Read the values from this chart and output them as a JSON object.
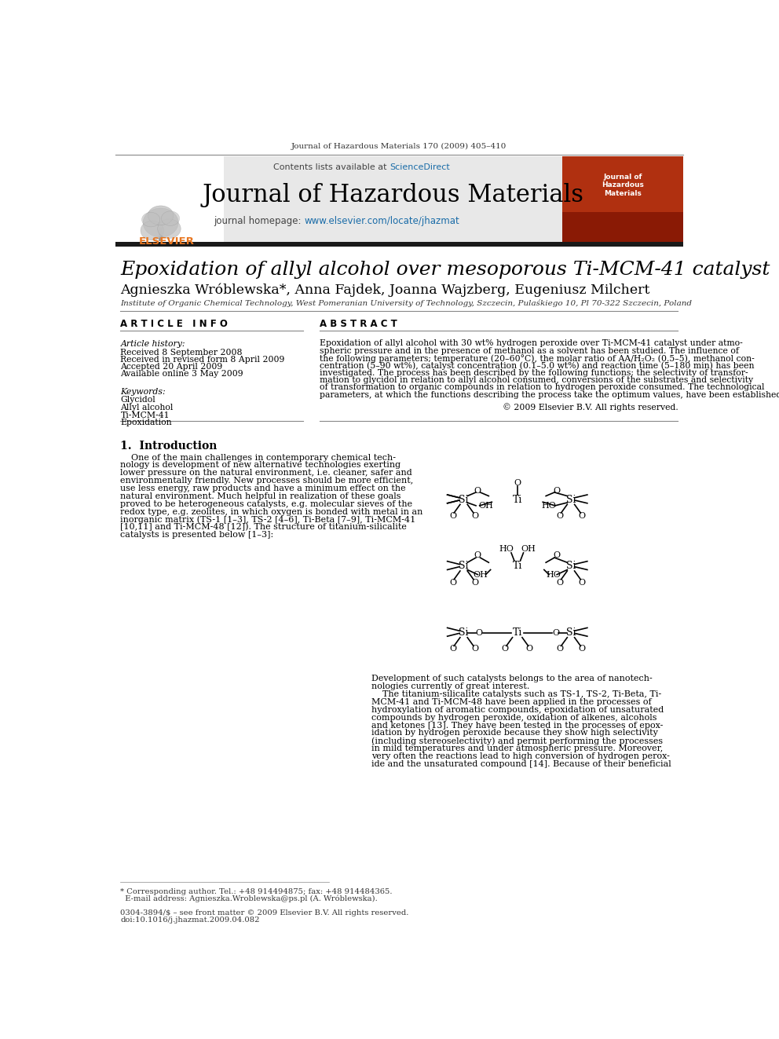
{
  "page_title": "Journal of Hazardous Materials 170 (2009) 405–410",
  "journal_name": "Journal of Hazardous Materials",
  "contents_text": "Contents lists available at ScienceDirect",
  "homepage_text": "journal homepage: www.elsevier.com/locate/jhazmat",
  "article_title": "Epoxidation of allyl alcohol over mesoporous Ti-MCM-41 catalyst",
  "authors": "Agnieszka Wróblewska*, Anna Fajdek, Joanna Wajzberg, Eugeniusz Milchert",
  "affiliation": "Institute of Organic Chemical Technology, West Pomeranian University of Technology, Szczecin, Pulaśkiego 10, Pl 70-322 Szczecin, Poland",
  "article_info_header": "A R T I C L E   I N F O",
  "abstract_header": "A B S T R A C T",
  "article_history_label": "Article history:",
  "received": "Received 8 September 2008",
  "received_revised": "Received in revised form 8 April 2009",
  "accepted": "Accepted 20 April 2009",
  "available": "Available online 3 May 2009",
  "keywords_label": "Keywords:",
  "keywords": [
    "Glycidol",
    "Allyl alcohol",
    "Ti-MCM-41",
    "Epoxidation"
  ],
  "copyright": "© 2009 Elsevier B.V. All rights reserved.",
  "intro_header": "1.  Introduction",
  "footer_text1": "* Corresponding author. Tel.: +48 914494875; fax: +48 914484365.",
  "footer_text2": "  E-mail address: Agnieszka.Wroblewska@ps.pl (A. Wróblewska).",
  "footer_bottom1": "0304-3894/$ – see front matter © 2009 Elsevier B.V. All rights reserved.",
  "footer_bottom2": "doi:10.1016/j.jhazmat.2009.04.082",
  "header_bg": "#e8e8e8",
  "header_bar_color": "#1a1a1a",
  "sciencedirect_color": "#1a6ca8",
  "link_color": "#1a6ca8",
  "black": "#000000",
  "dark_gray": "#333333",
  "abstract_lines": [
    "Epoxidation of allyl alcohol with 30 wt% hydrogen peroxide over Ti-MCM-41 catalyst under atmo-",
    "spheric pressure and in the presence of methanol as a solvent has been studied. The influence of",
    "the following parameters; temperature (20–60°C), the molar ratio of AA/H₂O₂ (0.5–5), methanol con-",
    "centration (5–90 wt%), catalyst concentration (0.1–5.0 wt%) and reaction time (5–180 min) has been",
    "investigated. The process has been described by the following functions; the selectivity of transfor-",
    "mation to glycidol in relation to allyl alcohol consumed, conversions of the substrates and selectivity",
    "of transformation to organic compounds in relation to hydrogen peroxide consumed. The technological",
    "parameters, at which the functions describing the process take the optimum values, have been established."
  ],
  "intro_lines": [
    "    One of the main challenges in contemporary chemical tech-",
    "nology is development of new alternative technologies exerting",
    "lower pressure on the natural environment, i.e. cleaner, safer and",
    "environmentally friendly. New processes should be more efficient,",
    "use less energy, raw products and have a minimum effect on the",
    "natural environment. Much helpful in realization of these goals",
    "proved to be heterogeneous catalysts, e.g. molecular sieves of the",
    "redox type, e.g. zeolites, in which oxygen is bonded with metal in an",
    "inorganic matrix (TS-1 [1–3], TS-2 [4–6], Ti-Beta [7–9], Ti-MCM-41",
    "[10,11] and Ti-MCM-48 [12]). The structure of titanium-silicalite",
    "catalysts is presented below [1–3]:"
  ],
  "right_bottom_lines": [
    "Development of such catalysts belongs to the area of nanotech-",
    "nologies currently of great interest.",
    "    The titanium-silicalite catalysts such as TS-1, TS-2, Ti-Beta, Ti-",
    "MCM-41 and Ti-MCM-48 have been applied in the processes of",
    "hydroxylation of aromatic compounds, epoxidation of unsaturated",
    "compounds by hydrogen peroxide, oxidation of alkenes, alcohols",
    "and ketones [13]. They have been tested in the processes of epox-",
    "idation by hydrogen peroxide because they show high selectivity",
    "(including stereoselectivity) and permit performing the processes",
    "in mild temperatures and under atmospheric pressure. Moreover,",
    "very often the reactions lead to high conversion of hydrogen perox-",
    "ide and the unsaturated compound [14]. Because of their beneficial"
  ]
}
